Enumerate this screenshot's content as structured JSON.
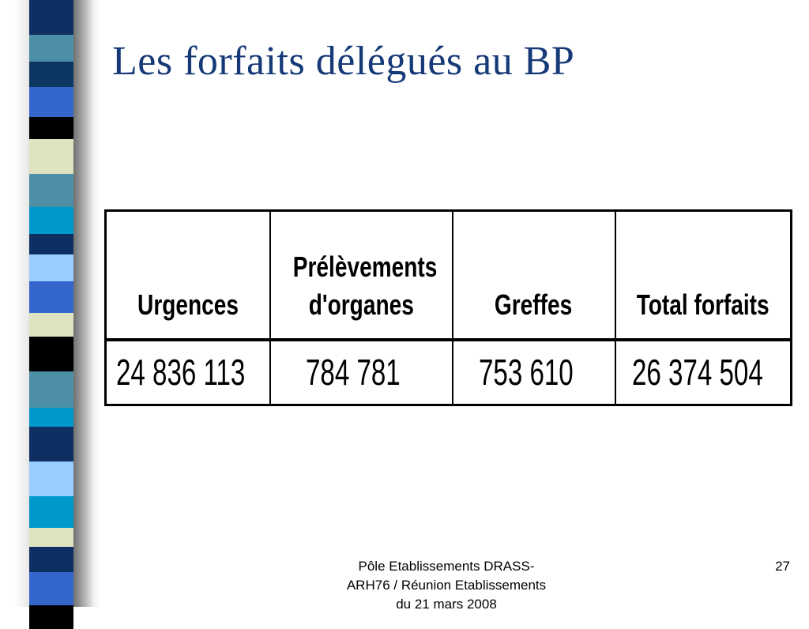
{
  "slide": {
    "title": "Les forfaits délégués au BP",
    "footer": "Pôle Etablissements DRASS-\nARH76 / Réunion Etablissements\ndu 21 mars 2008",
    "page_number": "27"
  },
  "decoration": {
    "stripe_colors": [
      "#0e2f62",
      "#4d8fa6",
      "#0d3763",
      "#3566cc",
      "#000000",
      "#e0e3c1",
      "#4d8fa6",
      "#0099cc",
      "#0e2f62",
      "#99ccff",
      "#3566cc",
      "#e0e3c1",
      "#000000",
      "#4d8fa6",
      "#0099cc",
      "#0e2f62",
      "#99ccff",
      "#0099cc",
      "#e0e3c1",
      "#0e2f62",
      "#3566cc",
      "#000000"
    ]
  },
  "table": {
    "headers": [
      [
        "Urgences"
      ],
      [
        "Prélèvements",
        "d'organes"
      ],
      [
        "Greffes"
      ],
      [
        "Total forfaits"
      ]
    ],
    "values": [
      "24 836 113",
      "784 781",
      "753 610",
      "26 374 504"
    ]
  }
}
